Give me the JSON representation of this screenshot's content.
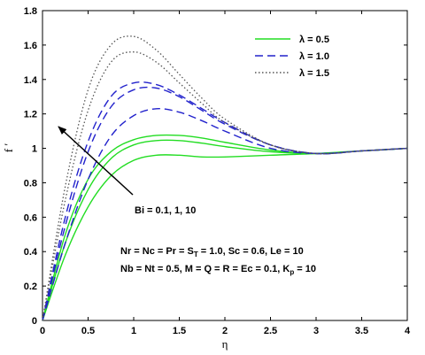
{
  "chart_data": {
    "type": "line",
    "xlabel": "η",
    "ylabel": "f ′",
    "xlim": [
      0,
      4
    ],
    "ylim": [
      0,
      1.8
    ],
    "x_ticks": [
      "0",
      "0.5",
      "1",
      "1.5",
      "2",
      "2.5",
      "3",
      "3.5",
      "4"
    ],
    "y_ticks": [
      "0",
      "0.2",
      "0.4",
      "0.6",
      "0.8",
      "1",
      "1.2",
      "1.4",
      "1.6",
      "1.8"
    ],
    "legend": {
      "placement": "top-right",
      "entries": [
        {
          "label": "λ = 0.5",
          "color": "#22dd22",
          "style": "solid"
        },
        {
          "label": "λ = 1.0",
          "color": "#2222cc",
          "style": "dashed"
        },
        {
          "label": "λ = 1.5",
          "color": "#555555",
          "style": "dotted"
        }
      ]
    },
    "annotations": {
      "arrow_label": "Bi = 0.1, 1, 10",
      "params_line1": "Nr = Nc = Pr = S",
      "params_line1_sub": "T",
      "params_line1_rest": " = 1.0, Sc = 0.6, Le = 10",
      "params_line2": "Nb = Nt = 0.5, M = Q = R = Ec = 0.1,  K",
      "params_line2_sub": "p",
      "params_line2_rest": " = 10"
    },
    "series": [
      {
        "group": "λ = 0.5",
        "color": "#22dd22",
        "style": "solid",
        "x": [
          0,
          0.25,
          0.5,
          0.75,
          1.0,
          1.25,
          1.5,
          1.75,
          2.0,
          2.5,
          3.0,
          3.5,
          4.0
        ],
        "y": [
          0,
          0.38,
          0.66,
          0.84,
          0.93,
          0.96,
          0.96,
          0.95,
          0.95,
          0.96,
          0.97,
          0.985,
          1.0
        ]
      },
      {
        "group": "λ = 0.5",
        "color": "#22dd22",
        "style": "solid",
        "x": [
          0,
          0.25,
          0.5,
          0.75,
          1.0,
          1.25,
          1.5,
          1.75,
          2.0,
          2.5,
          3.0,
          3.5,
          4.0
        ],
        "y": [
          0,
          0.45,
          0.76,
          0.94,
          1.02,
          1.045,
          1.045,
          1.03,
          1.01,
          0.98,
          0.97,
          0.985,
          1.0
        ]
      },
      {
        "group": "λ = 0.5",
        "color": "#22dd22",
        "style": "solid",
        "x": [
          0,
          0.25,
          0.5,
          0.75,
          1.0,
          1.25,
          1.5,
          1.75,
          2.0,
          2.5,
          3.0,
          3.5,
          4.0
        ],
        "y": [
          0,
          0.5,
          0.82,
          0.98,
          1.05,
          1.075,
          1.075,
          1.06,
          1.035,
          0.99,
          0.97,
          0.985,
          1.0
        ]
      },
      {
        "group": "λ = 1.0",
        "color": "#2222cc",
        "style": "dashed",
        "x": [
          0,
          0.25,
          0.5,
          0.75,
          1.0,
          1.25,
          1.5,
          1.75,
          2.0,
          2.5,
          3.0,
          3.5,
          4.0
        ],
        "y": [
          0,
          0.45,
          0.82,
          1.07,
          1.19,
          1.23,
          1.21,
          1.16,
          1.1,
          1.0,
          0.97,
          0.985,
          1.0
        ]
      },
      {
        "group": "λ = 1.0",
        "color": "#2222cc",
        "style": "dashed",
        "x": [
          0,
          0.25,
          0.5,
          0.75,
          1.0,
          1.25,
          1.5,
          1.75,
          2.0,
          2.5,
          3.0,
          3.5,
          4.0
        ],
        "y": [
          0,
          0.55,
          0.98,
          1.24,
          1.34,
          1.35,
          1.3,
          1.22,
          1.14,
          1.02,
          0.97,
          0.985,
          1.0
        ]
      },
      {
        "group": "λ = 1.0",
        "color": "#2222cc",
        "style": "dashed",
        "x": [
          0,
          0.25,
          0.5,
          0.75,
          1.0,
          1.25,
          1.5,
          1.75,
          2.0,
          2.5,
          3.0,
          3.5,
          4.0
        ],
        "y": [
          0,
          0.6,
          1.04,
          1.3,
          1.38,
          1.37,
          1.31,
          1.23,
          1.15,
          1.02,
          0.97,
          0.985,
          1.0
        ]
      },
      {
        "group": "λ = 1.5",
        "color": "#555555",
        "style": "dotted",
        "x": [
          0,
          0.25,
          0.5,
          0.75,
          1.0,
          1.25,
          1.5,
          1.75,
          2.0,
          2.5,
          3.0,
          3.5,
          4.0
        ],
        "y": [
          0,
          0.7,
          1.22,
          1.5,
          1.56,
          1.5,
          1.38,
          1.26,
          1.15,
          1.02,
          0.97,
          0.985,
          1.0
        ]
      },
      {
        "group": "λ = 1.5",
        "color": "#555555",
        "style": "dotted",
        "x": [
          0,
          0.25,
          0.5,
          0.75,
          1.0,
          1.25,
          1.5,
          1.75,
          2.0,
          2.5,
          3.0,
          3.5,
          4.0
        ],
        "y": [
          0,
          0.78,
          1.34,
          1.6,
          1.65,
          1.57,
          1.43,
          1.29,
          1.17,
          1.02,
          0.97,
          0.985,
          1.0
        ]
      }
    ]
  }
}
